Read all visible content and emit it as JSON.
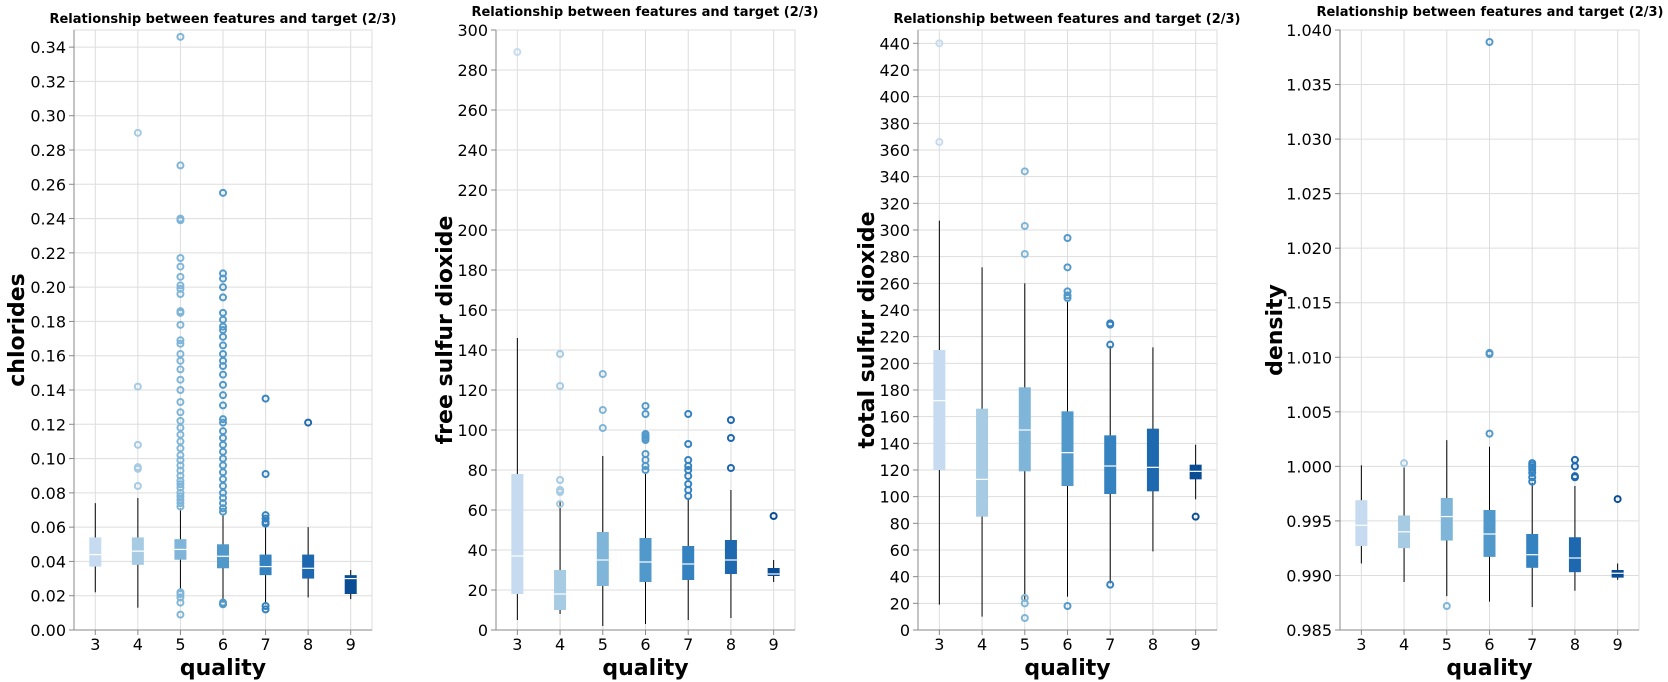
{
  "colors": {
    "3": "#c6dbef",
    "4": "#a6cbe3",
    "5": "#7fb5d8",
    "6": "#5299cb",
    "7": "#3582c1",
    "8": "#1d68ae",
    "9": "#0a4d94"
  },
  "chart_data": [
    {
      "type": "boxplot",
      "title": "Relationship between features and target (2/3)",
      "xlabel": "quality",
      "ylabel": "chlorides",
      "categories": [
        "3",
        "4",
        "5",
        "6",
        "7",
        "8",
        "9"
      ],
      "ylim": [
        0,
        0.35
      ],
      "yticks": [
        0,
        0.02,
        0.04,
        0.06,
        0.08,
        0.1,
        0.12,
        0.14,
        0.16,
        0.18,
        0.2,
        0.22,
        0.24,
        0.26,
        0.28,
        0.3,
        0.32,
        0.34
      ],
      "ytick_decimals": 2,
      "boxes": [
        {
          "q": "3",
          "whislo": 0.022,
          "q1": 0.037,
          "med": 0.044,
          "q3": 0.054,
          "whishi": 0.074,
          "fliers": []
        },
        {
          "q": "4",
          "whislo": 0.013,
          "q1": 0.038,
          "med": 0.046,
          "q3": 0.054,
          "whishi": 0.077,
          "fliers": [
            0.084,
            0.094,
            0.095,
            0.108,
            0.142,
            0.29
          ]
        },
        {
          "q": "5",
          "whislo": 0.023,
          "q1": 0.041,
          "med": 0.047,
          "q3": 0.053,
          "whishi": 0.071,
          "fliers": [
            0.009,
            0.016,
            0.019,
            0.021,
            0.022,
            0.072,
            0.074,
            0.076,
            0.078,
            0.08,
            0.083,
            0.085,
            0.087,
            0.09,
            0.093,
            0.096,
            0.099,
            0.102,
            0.106,
            0.11,
            0.114,
            0.118,
            0.122,
            0.127,
            0.133,
            0.14,
            0.146,
            0.152,
            0.157,
            0.161,
            0.167,
            0.169,
            0.178,
            0.185,
            0.186,
            0.196,
            0.199,
            0.201,
            0.206,
            0.212,
            0.217,
            0.239,
            0.24,
            0.271,
            0.346
          ]
        },
        {
          "q": "6",
          "whislo": 0.016,
          "q1": 0.036,
          "med": 0.043,
          "q3": 0.05,
          "whishi": 0.067,
          "fliers": [
            0.015,
            0.016,
            0.069,
            0.071,
            0.074,
            0.077,
            0.08,
            0.084,
            0.088,
            0.092,
            0.096,
            0.1,
            0.104,
            0.108,
            0.112,
            0.116,
            0.121,
            0.123,
            0.131,
            0.137,
            0.143,
            0.149,
            0.154,
            0.157,
            0.161,
            0.166,
            0.171,
            0.175,
            0.177,
            0.181,
            0.185,
            0.194,
            0.2,
            0.205,
            0.208,
            0.255
          ]
        },
        {
          "q": "7",
          "whislo": 0.015,
          "q1": 0.032,
          "med": 0.037,
          "q3": 0.044,
          "whishi": 0.061,
          "fliers": [
            0.012,
            0.014,
            0.062,
            0.063,
            0.065,
            0.067,
            0.091,
            0.135
          ]
        },
        {
          "q": "8",
          "whislo": 0.019,
          "q1": 0.03,
          "med": 0.036,
          "q3": 0.044,
          "whishi": 0.06,
          "fliers": [
            0.121
          ]
        },
        {
          "q": "9",
          "whislo": 0.018,
          "q1": 0.021,
          "med": 0.03,
          "q3": 0.032,
          "whishi": 0.035,
          "fliers": []
        }
      ]
    },
    {
      "type": "boxplot",
      "title": "Relationship between features and target (2/3)",
      "xlabel": "quality",
      "ylabel": "free sulfur dioxide",
      "categories": [
        "3",
        "4",
        "5",
        "6",
        "7",
        "8",
        "9"
      ],
      "ylim": [
        0,
        300
      ],
      "yticks": [
        0,
        20,
        40,
        60,
        80,
        100,
        120,
        140,
        160,
        180,
        200,
        220,
        240,
        260,
        280,
        300
      ],
      "ytick_decimals": 0,
      "boxes": [
        {
          "q": "3",
          "whislo": 5,
          "q1": 18,
          "med": 37,
          "q3": 78,
          "whishi": 146,
          "fliers": [
            289
          ]
        },
        {
          "q": "4",
          "whislo": 8,
          "q1": 10,
          "med": 18,
          "q3": 30,
          "whishi": 64,
          "fliers": [
            63,
            69,
            70,
            75,
            122,
            138
          ]
        },
        {
          "q": "5",
          "whislo": 2,
          "q1": 22,
          "med": 35,
          "q3": 49,
          "whishi": 87,
          "fliers": [
            101,
            110,
            128
          ]
        },
        {
          "q": "6",
          "whislo": 3,
          "q1": 24,
          "med": 34,
          "q3": 46,
          "whishi": 78,
          "fliers": [
            80,
            82,
            85,
            88,
            95,
            96,
            97,
            98,
            108,
            112
          ]
        },
        {
          "q": "7",
          "whislo": 5,
          "q1": 25,
          "med": 33,
          "q3": 42,
          "whishi": 66,
          "fliers": [
            67,
            70,
            73,
            77,
            80,
            82,
            85,
            93,
            108
          ]
        },
        {
          "q": "8",
          "whislo": 6,
          "q1": 28,
          "med": 35,
          "q3": 45,
          "whishi": 70,
          "fliers": [
            81,
            96,
            105
          ]
        },
        {
          "q": "9",
          "whislo": 24,
          "q1": 27,
          "med": 28,
          "q3": 31,
          "whishi": 35,
          "fliers": [
            57
          ]
        }
      ]
    },
    {
      "type": "boxplot",
      "title": "Relationship between features and target (2/3)",
      "xlabel": "quality",
      "ylabel": "total sulfur dioxide",
      "categories": [
        "3",
        "4",
        "5",
        "6",
        "7",
        "8",
        "9"
      ],
      "ylim": [
        0,
        450
      ],
      "yticks": [
        0,
        20,
        40,
        60,
        80,
        100,
        120,
        140,
        160,
        180,
        200,
        220,
        240,
        260,
        280,
        300,
        320,
        340,
        360,
        380,
        400,
        420,
        440
      ],
      "ytick_decimals": 0,
      "boxes": [
        {
          "q": "3",
          "whislo": 19,
          "q1": 120,
          "med": 172,
          "q3": 210,
          "whishi": 307,
          "fliers": [
            366,
            440
          ]
        },
        {
          "q": "4",
          "whislo": 10,
          "q1": 85,
          "med": 113,
          "q3": 166,
          "whishi": 272,
          "fliers": []
        },
        {
          "q": "5",
          "whislo": 22,
          "q1": 119,
          "med": 150,
          "q3": 182,
          "whishi": 260,
          "fliers": [
            9,
            20,
            24,
            282,
            303,
            344
          ]
        },
        {
          "q": "6",
          "whislo": 25,
          "q1": 108,
          "med": 133,
          "q3": 164,
          "whishi": 246,
          "fliers": [
            18,
            249,
            251,
            254,
            272,
            294
          ]
        },
        {
          "q": "7",
          "whislo": 35,
          "q1": 102,
          "med": 123,
          "q3": 146,
          "whishi": 213,
          "fliers": [
            34,
            214,
            229,
            230
          ]
        },
        {
          "q": "8",
          "whislo": 59,
          "q1": 104,
          "med": 122,
          "q3": 151,
          "whishi": 212,
          "fliers": []
        },
        {
          "q": "9",
          "whislo": 98,
          "q1": 113,
          "med": 119,
          "q3": 124,
          "whishi": 139,
          "fliers": [
            85
          ]
        }
      ]
    },
    {
      "type": "boxplot",
      "title": "Relationship between features and target (2/3)",
      "xlabel": "quality",
      "ylabel": "density",
      "categories": [
        "3",
        "4",
        "5",
        "6",
        "7",
        "8",
        "9"
      ],
      "ylim": [
        0.985,
        1.04
      ],
      "yticks": [
        0.985,
        0.99,
        0.995,
        1.0,
        1.005,
        1.01,
        1.015,
        1.02,
        1.025,
        1.03,
        1.035,
        1.04
      ],
      "ytick_decimals": 3,
      "boxes": [
        {
          "q": "3",
          "whislo": 0.9911,
          "q1": 0.9927,
          "med": 0.9946,
          "q3": 0.9969,
          "whishi": 1.0001,
          "fliers": []
        },
        {
          "q": "4",
          "whislo": 0.9894,
          "q1": 0.9925,
          "med": 0.994,
          "q3": 0.9955,
          "whishi": 0.9999,
          "fliers": [
            1.0003
          ]
        },
        {
          "q": "5",
          "whislo": 0.9881,
          "q1": 0.9932,
          "med": 0.9954,
          "q3": 0.9971,
          "whishi": 1.0024,
          "fliers": [
            0.9872
          ]
        },
        {
          "q": "6",
          "whislo": 0.9876,
          "q1": 0.9917,
          "med": 0.9938,
          "q3": 0.996,
          "whishi": 1.0018,
          "fliers": [
            1.003,
            1.0103,
            1.0104,
            1.0389
          ]
        },
        {
          "q": "7",
          "whislo": 0.9871,
          "q1": 0.9907,
          "med": 0.9919,
          "q3": 0.9938,
          "whishi": 0.9985,
          "fliers": [
            0.9986,
            0.999,
            0.9994,
            0.9997,
            0.9999,
            1.0001,
            1.0003
          ]
        },
        {
          "q": "8",
          "whislo": 0.9886,
          "q1": 0.9903,
          "med": 0.9916,
          "q3": 0.9935,
          "whishi": 0.9982,
          "fliers": [
            0.999,
            0.9991,
            1.0,
            1.0006
          ]
        },
        {
          "q": "9",
          "whislo": 0.9896,
          "q1": 0.9898,
          "med": 0.9902,
          "q3": 0.9905,
          "whishi": 0.9911,
          "fliers": [
            0.997
          ]
        }
      ]
    }
  ]
}
